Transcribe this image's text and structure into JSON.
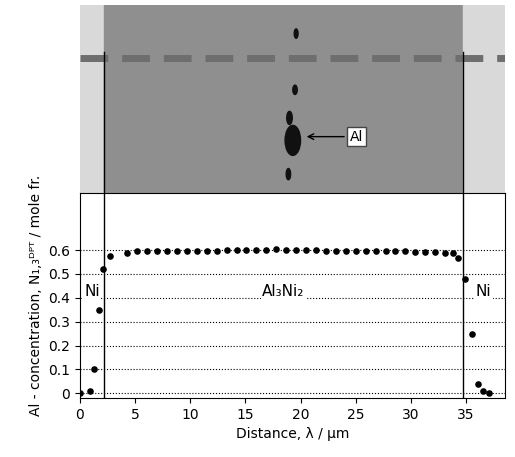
{
  "chart_data": {
    "type": "scatter",
    "x_label": "Distance, λ / µm",
    "y_label": "Al - concentration, N₁,₃ᴰᴾᵀ / mole fr.",
    "x": [
      0,
      0.9,
      1.3,
      1.7,
      2.1,
      2.7,
      4.3,
      5.2,
      6.1,
      7.0,
      7.9,
      8.8,
      9.7,
      10.6,
      11.5,
      12.4,
      13.3,
      14.2,
      15.1,
      16.0,
      16.9,
      17.8,
      18.7,
      19.6,
      20.5,
      21.4,
      22.3,
      23.2,
      24.1,
      25.0,
      25.9,
      26.8,
      27.7,
      28.6,
      29.5,
      30.4,
      31.3,
      32.2,
      33.1,
      33.8,
      34.3,
      34.9,
      35.5,
      36.1,
      36.5,
      37.1
    ],
    "values": [
      0,
      0.01,
      0.1,
      0.35,
      0.52,
      0.575,
      0.59,
      0.595,
      0.595,
      0.595,
      0.595,
      0.595,
      0.597,
      0.597,
      0.598,
      0.598,
      0.6,
      0.6,
      0.6,
      0.6,
      0.602,
      0.603,
      0.6,
      0.6,
      0.6,
      0.6,
      0.598,
      0.598,
      0.597,
      0.597,
      0.597,
      0.596,
      0.596,
      0.595,
      0.595,
      0.594,
      0.593,
      0.592,
      0.59,
      0.59,
      0.565,
      0.48,
      0.25,
      0.04,
      0.01,
      0
    ],
    "color": "#000000",
    "marker": "circle",
    "xlim": [
      0,
      38.5
    ],
    "xticks": [
      0,
      5,
      10,
      15,
      20,
      25,
      30,
      35
    ],
    "ylim": [
      -0.02,
      0.84
    ],
    "yticks": [
      0,
      0.1,
      0.2,
      0.3,
      0.4,
      0.5,
      0.6
    ],
    "grid": true,
    "boundaries": [
      2.2,
      34.7
    ],
    "region_labels": [
      "Ni",
      "Al₃Ni₂",
      "Ni"
    ],
    "annotations": [
      "Al"
    ]
  }
}
